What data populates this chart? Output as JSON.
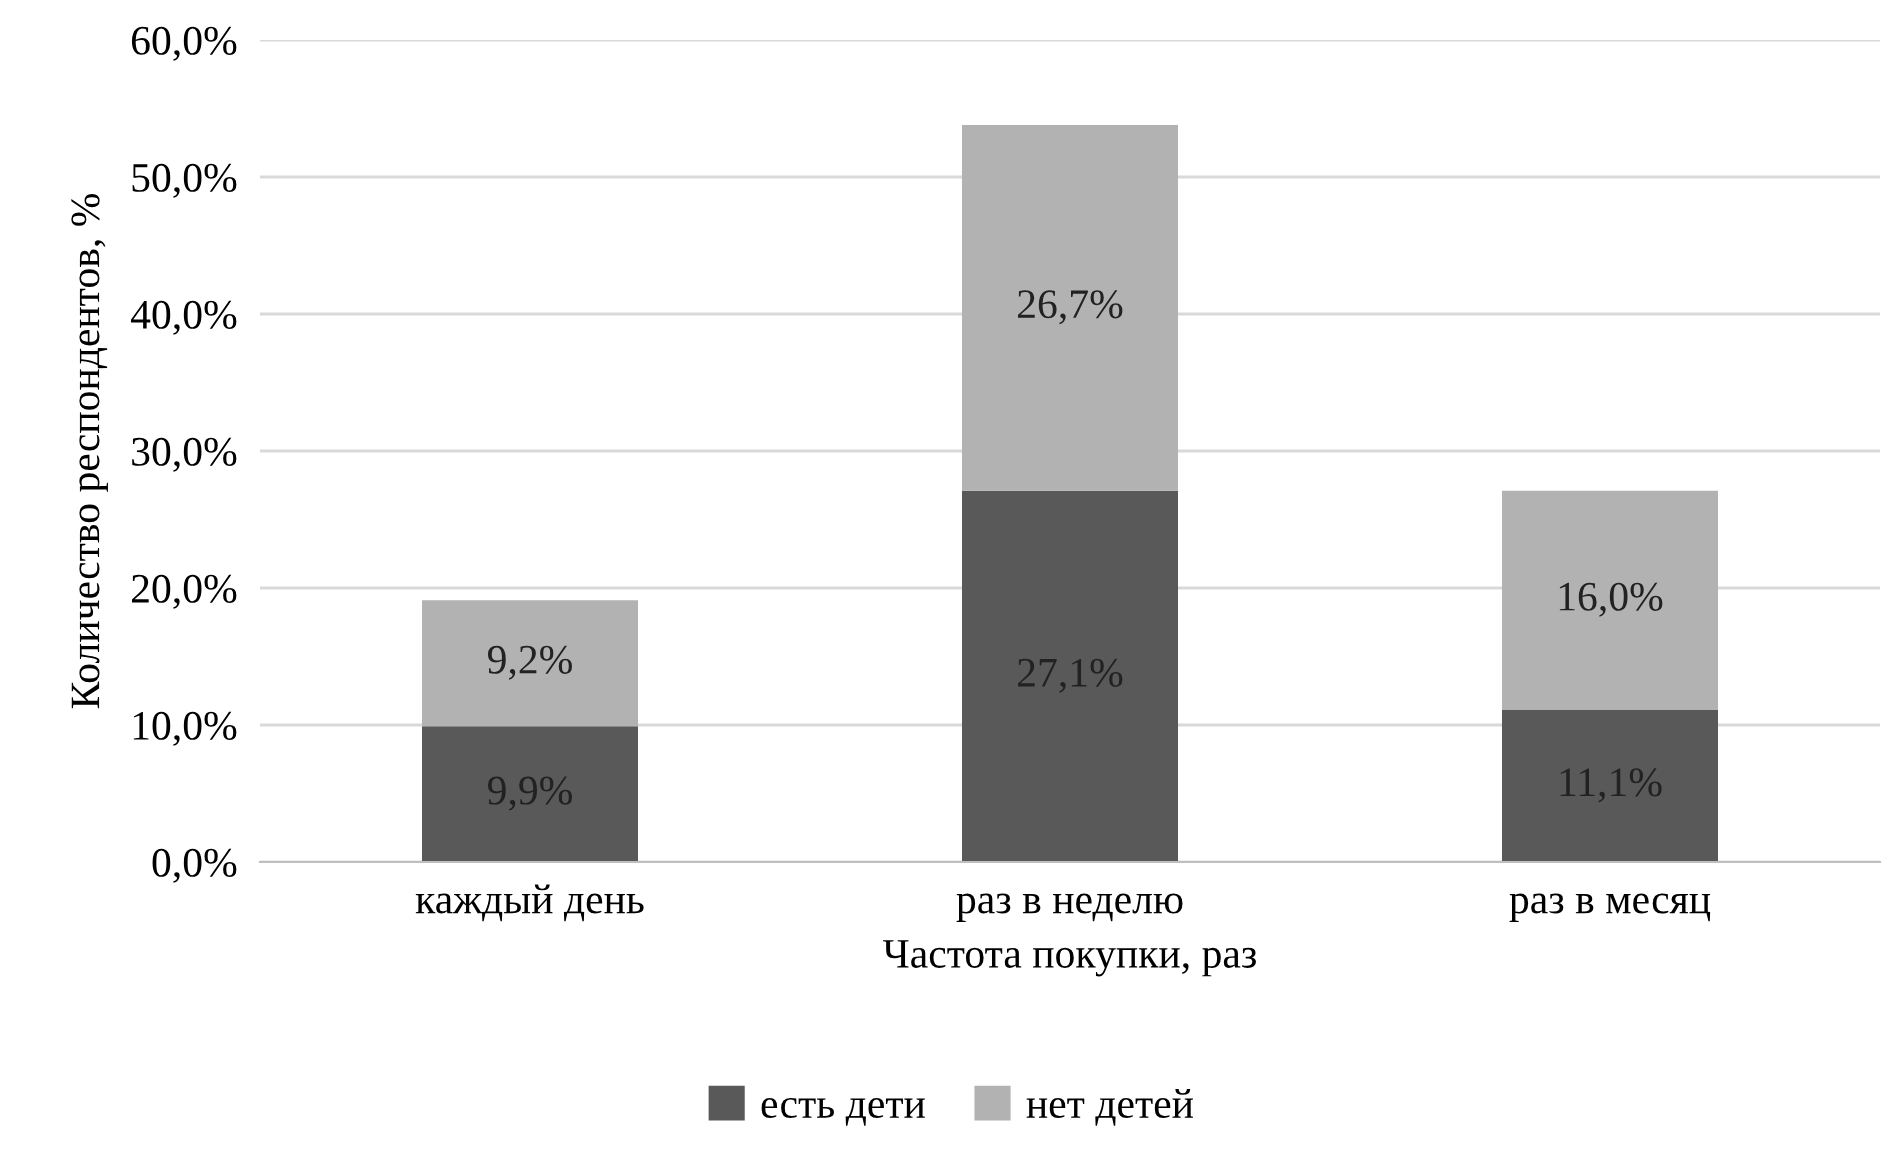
{
  "chart_data": {
    "type": "bar",
    "stacked": true,
    "xlabel": "Частота покупки, раз",
    "ylabel": "Количество респондентов, %",
    "categories": [
      "каждый день",
      "раз в неделю",
      "раз в месяц"
    ],
    "series": [
      {
        "name": "есть дети",
        "color": "#595959",
        "values": [
          9.9,
          27.1,
          11.1
        ],
        "value_labels": [
          "9,9%",
          "27,1%",
          "11,1%"
        ]
      },
      {
        "name": "нет детей",
        "color": "#b2b2b2",
        "values": [
          9.2,
          26.7,
          16.0
        ],
        "value_labels": [
          "9,2%",
          "26,7%",
          "16,0%"
        ]
      }
    ],
    "ylim": [
      0,
      60
    ],
    "yticks": [
      {
        "value": 0,
        "label": "0,0%"
      },
      {
        "value": 10,
        "label": "10,0%"
      },
      {
        "value": 20,
        "label": "20,0%"
      },
      {
        "value": 30,
        "label": "30,0%"
      },
      {
        "value": 40,
        "label": "40,0%"
      },
      {
        "value": 50,
        "label": "50,0%"
      },
      {
        "value": 60,
        "label": "60,0%"
      }
    ],
    "grid": "y",
    "legend": "bottom"
  }
}
